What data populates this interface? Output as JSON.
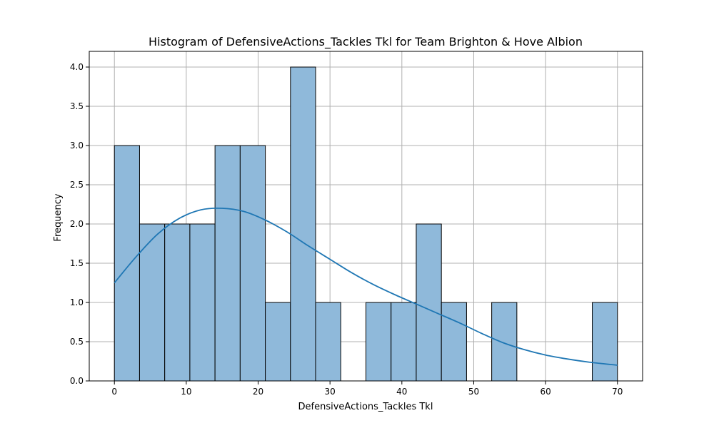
{
  "chart_data": {
    "type": "bar",
    "subtype": "histogram",
    "title": "Histogram of DefensiveActions_Tackles Tkl for Team Brighton & Hove Albion",
    "xlabel": "DefensiveActions_Tackles Tkl",
    "ylabel": "Frequency",
    "xlim": [
      -3.5,
      73.5
    ],
    "ylim": [
      0,
      4.2
    ],
    "xticks": [
      0,
      10,
      20,
      30,
      40,
      50,
      60,
      70
    ],
    "xtick_labels": [
      "0",
      "10",
      "20",
      "30",
      "40",
      "50",
      "60",
      "70"
    ],
    "yticks": [
      0,
      0.5,
      1.0,
      1.5,
      2.0,
      2.5,
      3.0,
      3.5,
      4.0
    ],
    "ytick_labels": [
      "0.0",
      "0.5",
      "1.0",
      "1.5",
      "2.0",
      "2.5",
      "3.0",
      "3.5",
      "4.0"
    ],
    "bins": [
      {
        "x0": 0.0,
        "x1": 3.5,
        "count": 3
      },
      {
        "x0": 3.5,
        "x1": 7.0,
        "count": 2
      },
      {
        "x0": 7.0,
        "x1": 10.5,
        "count": 2
      },
      {
        "x0": 10.5,
        "x1": 14.0,
        "count": 2
      },
      {
        "x0": 14.0,
        "x1": 17.5,
        "count": 3
      },
      {
        "x0": 17.5,
        "x1": 21.0,
        "count": 3
      },
      {
        "x0": 21.0,
        "x1": 24.5,
        "count": 1
      },
      {
        "x0": 24.5,
        "x1": 28.0,
        "count": 4
      },
      {
        "x0": 28.0,
        "x1": 31.5,
        "count": 1
      },
      {
        "x0": 31.5,
        "x1": 35.0,
        "count": 0
      },
      {
        "x0": 35.0,
        "x1": 38.5,
        "count": 1
      },
      {
        "x0": 38.5,
        "x1": 42.0,
        "count": 1
      },
      {
        "x0": 42.0,
        "x1": 45.5,
        "count": 2
      },
      {
        "x0": 45.5,
        "x1": 49.0,
        "count": 1
      },
      {
        "x0": 49.0,
        "x1": 52.5,
        "count": 0
      },
      {
        "x0": 52.5,
        "x1": 56.0,
        "count": 1
      },
      {
        "x0": 56.0,
        "x1": 59.5,
        "count": 0
      },
      {
        "x0": 59.5,
        "x1": 63.0,
        "count": 0
      },
      {
        "x0": 63.0,
        "x1": 66.5,
        "count": 0
      },
      {
        "x0": 66.5,
        "x1": 70.0,
        "count": 1
      }
    ],
    "kde": {
      "x": [
        0,
        3,
        6,
        9,
        12,
        15,
        18,
        21,
        24,
        27,
        30,
        33,
        36,
        39,
        42,
        45,
        48,
        51,
        54,
        57,
        60,
        63,
        66,
        70
      ],
      "y": [
        1.25,
        1.58,
        1.87,
        2.07,
        2.18,
        2.2,
        2.16,
        2.05,
        1.9,
        1.72,
        1.55,
        1.38,
        1.23,
        1.1,
        0.98,
        0.86,
        0.74,
        0.61,
        0.49,
        0.4,
        0.33,
        0.28,
        0.24,
        0.2
      ]
    },
    "grid": true,
    "colors": {
      "bar_fill": "#8fb9da",
      "bar_edge": "#000000",
      "kde_line": "#1f77b4",
      "grid": "#b0b0b0"
    }
  }
}
